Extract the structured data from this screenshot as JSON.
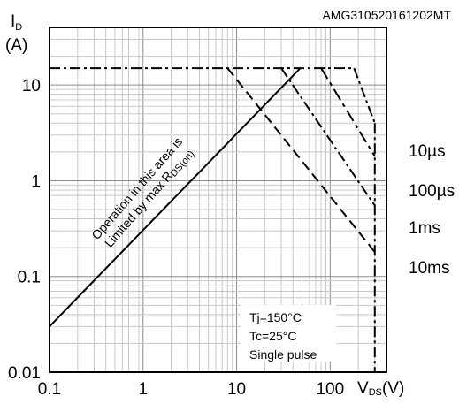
{
  "chart_data": {
    "type": "line",
    "xscale": "log",
    "yscale": "log",
    "xlim": [
      0.1,
      400
    ],
    "ylim": [
      0.01,
      40
    ],
    "grid": true,
    "code": "AMG310520161202MT",
    "y_label": {
      "main": "I",
      "sub": "D",
      "unit": "(A)"
    },
    "x_label": {
      "main": "V",
      "sub": "DS",
      "unit": "(V)"
    },
    "x_ticks": [
      {
        "value": 0.1,
        "label": "0.1"
      },
      {
        "value": 1,
        "label": "1"
      },
      {
        "value": 10,
        "label": "10"
      },
      {
        "value": 100,
        "label": "100"
      }
    ],
    "y_ticks": [
      {
        "value": 10,
        "label": "10"
      },
      {
        "value": 1,
        "label": "1"
      },
      {
        "value": 0.1,
        "label": "0.1"
      },
      {
        "value": 0.01,
        "label": "0.01"
      }
    ],
    "rds_limit": {
      "points": [
        [
          0.1,
          0.03
        ],
        [
          48,
          15
        ]
      ],
      "annotation": {
        "line1": "Operation in this area is",
        "line2_main": "Limited by max R",
        "line2_sub": "DS(on)"
      }
    },
    "current_limit": 15,
    "vds_max": 300,
    "series": [
      {
        "name": "10µs",
        "style": "dashdot",
        "points": [
          [
            180,
            15
          ],
          [
            300,
            4
          ]
        ]
      },
      {
        "name": "100µs",
        "style": "dashdot2",
        "points": [
          [
            80,
            15
          ],
          [
            300,
            1.8
          ]
        ]
      },
      {
        "name": "1ms",
        "style": "dashdot",
        "points": [
          [
            30,
            15
          ],
          [
            300,
            0.55
          ]
        ]
      },
      {
        "name": "10ms",
        "style": "dash",
        "points": [
          [
            8,
            15
          ],
          [
            300,
            0.18
          ]
        ]
      }
    ],
    "conditions": [
      "Tj=150°C",
      "Tc=25°C",
      "Single pulse"
    ]
  }
}
